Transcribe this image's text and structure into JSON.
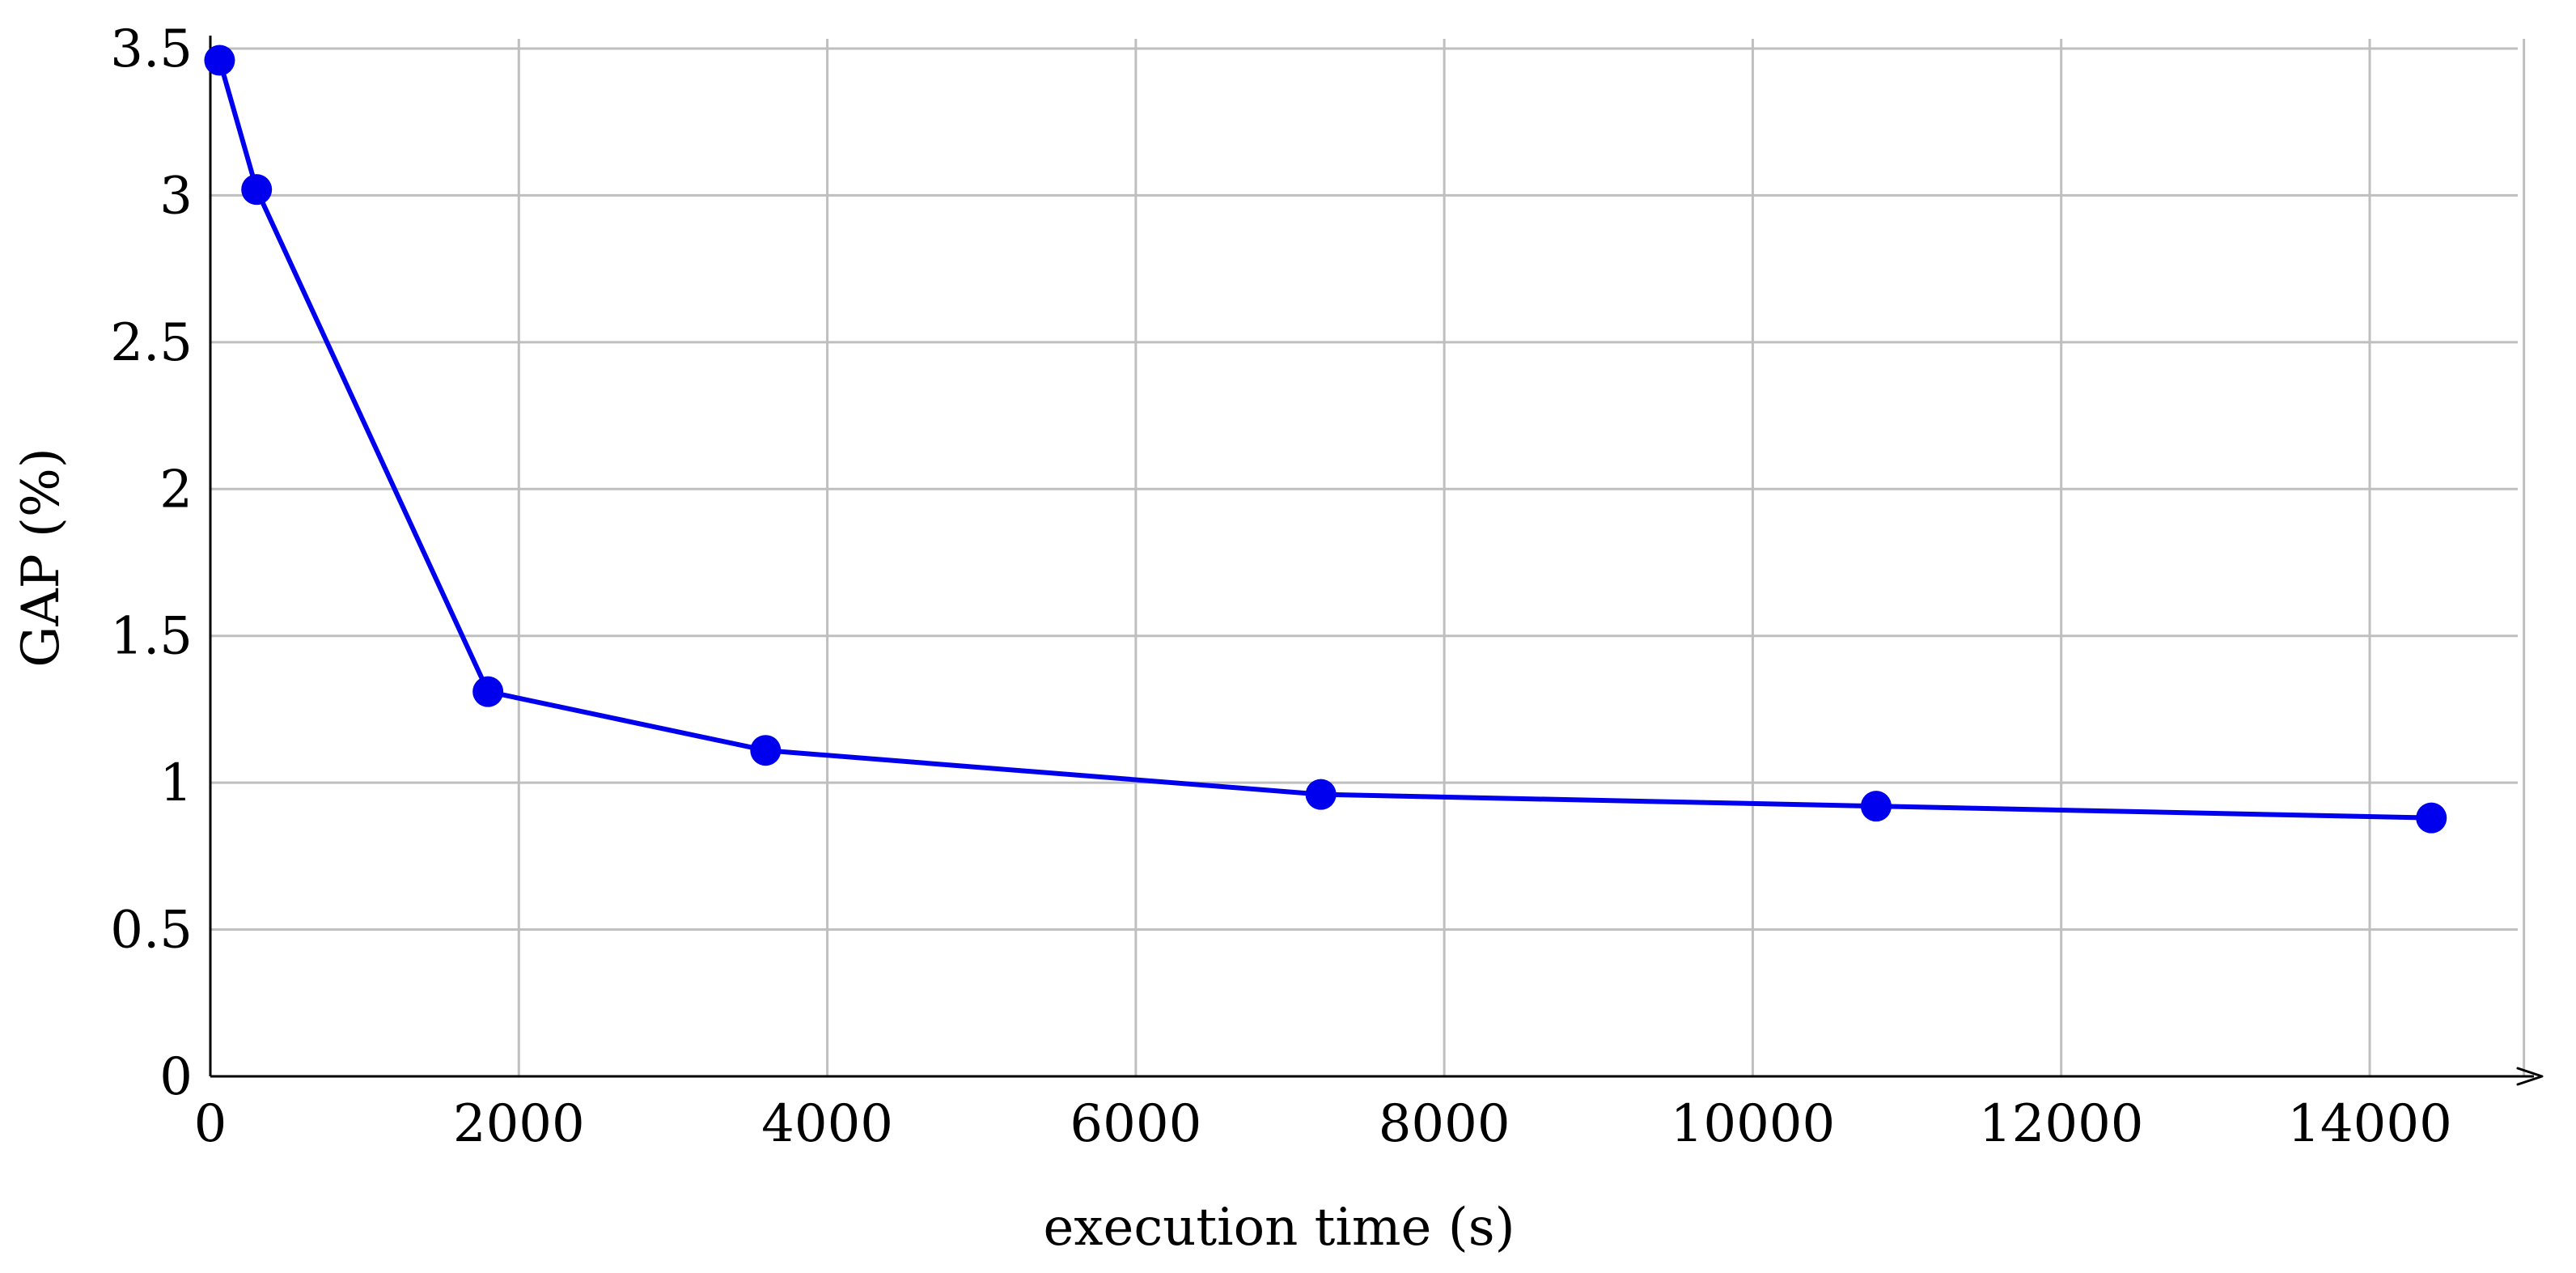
{
  "chart_data": {
    "type": "line",
    "title": "",
    "xlabel": "execution time (s)",
    "ylabel": "GAP (%)",
    "xlim": [
      0,
      15000
    ],
    "ylim": [
      0,
      3.5
    ],
    "x_ticks": [
      0,
      2000,
      4000,
      6000,
      8000,
      10000,
      12000,
      14000
    ],
    "x_tick_labels": [
      "0",
      "2000",
      "4000",
      "6000",
      "8000",
      "10000",
      "12000",
      "14000"
    ],
    "y_ticks": [
      0,
      0.5,
      1,
      1.5,
      2,
      2.5,
      3,
      3.5
    ],
    "y_tick_labels": [
      "0",
      "0.5",
      "1",
      "1.5",
      "2",
      "2.5",
      "3",
      "3.5"
    ],
    "grid": true,
    "legend": "none",
    "series": [
      {
        "color": "#0000ee",
        "marker": "circle",
        "x": [
          60,
          300,
          1800,
          3600,
          7200,
          10800,
          14400
        ],
        "y": [
          3.46,
          3.02,
          1.31,
          1.11,
          0.96,
          0.92,
          0.88
        ]
      }
    ],
    "colors": {
      "series": "#0000ee",
      "grid": "#bfbfbf",
      "axis": "#000000"
    }
  }
}
